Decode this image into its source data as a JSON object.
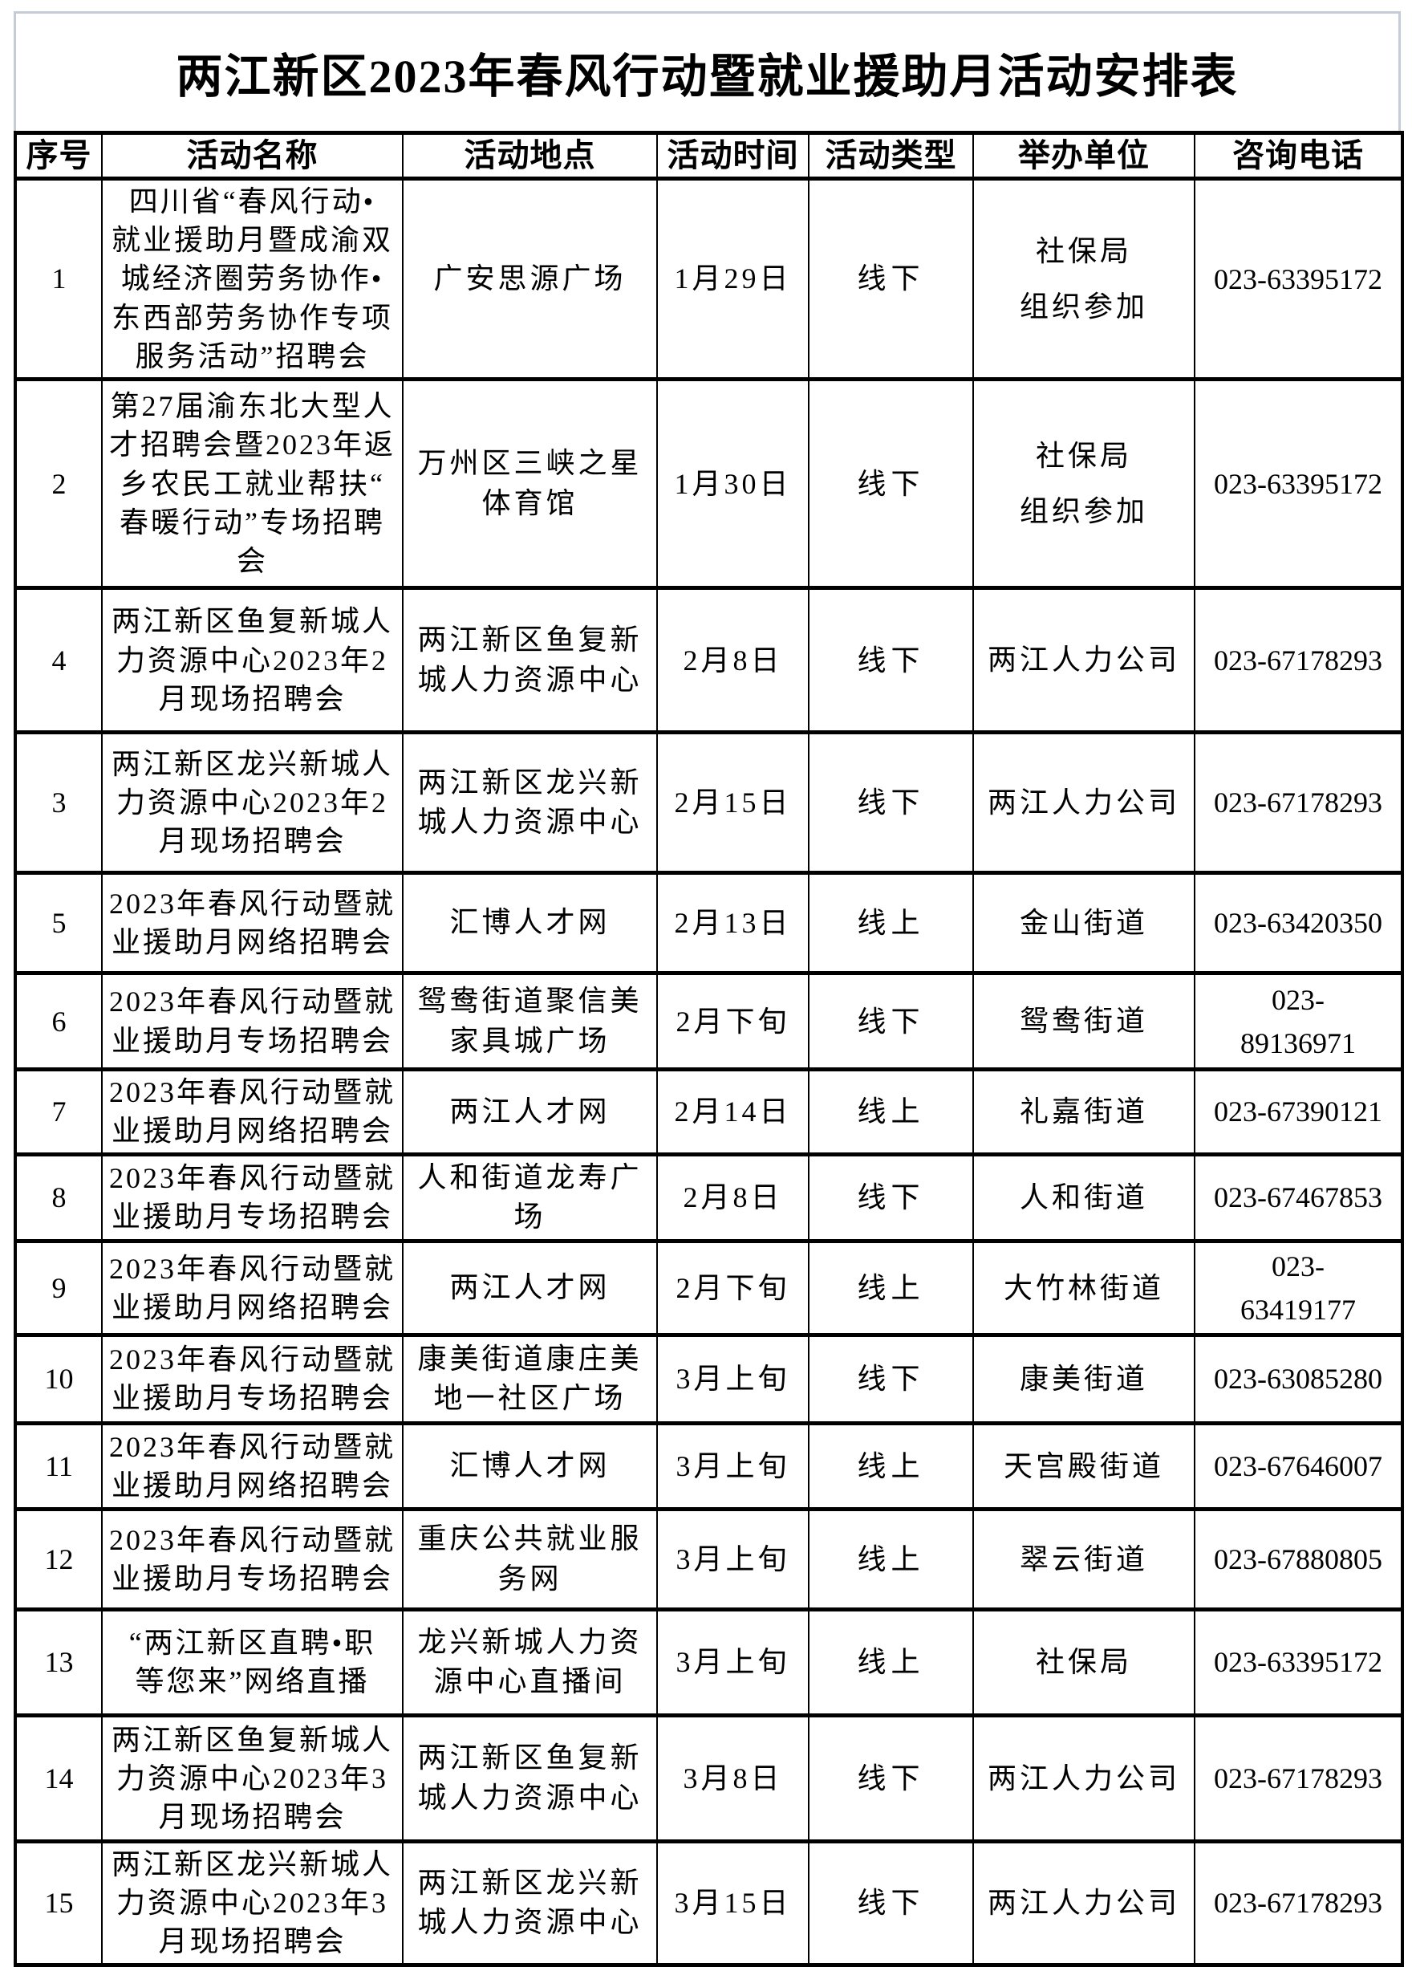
{
  "page": {
    "title": "两江新区2023年春风行动暨就业援助月活动安排表"
  },
  "table": {
    "columns": [
      "序号",
      "活动名称",
      "活动地点",
      "活动时间",
      "活动类型",
      "举办单位",
      "咨询电话"
    ],
    "rows": [
      {
        "no": "1",
        "name": "四川省“春风行动•\n就业援助月暨成渝双\n城经济圈劳务协作•\n东西部劳务协作专项\n服务活动”招聘会",
        "place": "广安思源广场",
        "time": "1月29日",
        "type": "线下",
        "org": "社保局\n组织参加",
        "phone": "023-63395172"
      },
      {
        "no": "2",
        "name": "第27届渝东北大型人\n才招聘会暨2023年返\n乡农民工就业帮扶“\n春暖行动”专场招聘\n会",
        "place": "万州区三峡之星\n体育馆",
        "time": "1月30日",
        "type": "线下",
        "org": "社保局\n组织参加",
        "phone": "023-63395172"
      },
      {
        "no": "4",
        "name": "两江新区鱼复新城人\n力资源中心2023年2\n月现场招聘会",
        "place": "两江新区鱼复新\n城人力资源中心",
        "time": "2月8日",
        "type": "线下",
        "org": "两江人力公司",
        "phone": "023-67178293"
      },
      {
        "no": "3",
        "name": "两江新区龙兴新城人\n力资源中心2023年2\n月现场招聘会",
        "place": "两江新区龙兴新\n城人力资源中心",
        "time": "2月15日",
        "type": "线下",
        "org": "两江人力公司",
        "phone": "023-67178293"
      },
      {
        "no": "5",
        "name": "2023年春风行动暨就\n业援助月网络招聘会",
        "place": "汇博人才网",
        "time": "2月13日",
        "type": "线上",
        "org": "金山街道",
        "phone": "023-63420350"
      },
      {
        "no": "6",
        "name": "2023年春风行动暨就\n业援助月专场招聘会",
        "place": "鸳鸯街道聚信美\n家具城广场",
        "time": "2月下旬",
        "type": "线下",
        "org": "鸳鸯街道",
        "phone": "023-\n89136971"
      },
      {
        "no": "7",
        "name": "2023年春风行动暨就\n业援助月网络招聘会",
        "place": "两江人才网",
        "time": "2月14日",
        "type": "线上",
        "org": "礼嘉街道",
        "phone": "023-67390121"
      },
      {
        "no": "8",
        "name": "2023年春风行动暨就\n业援助月专场招聘会",
        "place": "人和街道龙寿广\n场",
        "time": "2月8日",
        "type": "线下",
        "org": "人和街道",
        "phone": "023-67467853"
      },
      {
        "no": "9",
        "name": "2023年春风行动暨就\n业援助月网络招聘会",
        "place": "两江人才网",
        "time": "2月下旬",
        "type": "线上",
        "org": "大竹林街道",
        "phone": "023-\n63419177"
      },
      {
        "no": "10",
        "name": "2023年春风行动暨就\n业援助月专场招聘会",
        "place": "康美街道康庄美\n地一社区广场",
        "time": "3月上旬",
        "type": "线下",
        "org": "康美街道",
        "phone": "023-63085280"
      },
      {
        "no": "11",
        "name": "2023年春风行动暨就\n业援助月网络招聘会",
        "place": "汇博人才网",
        "time": "3月上旬",
        "type": "线上",
        "org": "天宫殿街道",
        "phone": "023-67646007"
      },
      {
        "no": "12",
        "name": "2023年春风行动暨就\n业援助月专场招聘会",
        "place": "重庆公共就业服\n务网",
        "time": "3月上旬",
        "type": "线上",
        "org": "翠云街道",
        "phone": "023-67880805"
      },
      {
        "no": "13",
        "name": "“两江新区直聘•职\n等您来”网络直播",
        "place": "龙兴新城人力资\n源中心直播间",
        "time": "3月上旬",
        "type": "线上",
        "org": "社保局",
        "phone": "023-63395172"
      },
      {
        "no": "14",
        "name": "两江新区鱼复新城人\n力资源中心2023年3\n月现场招聘会",
        "place": "两江新区鱼复新\n城人力资源中心",
        "time": "3月8日",
        "type": "线下",
        "org": "两江人力公司",
        "phone": "023-67178293"
      },
      {
        "no": "15",
        "name": "两江新区龙兴新城人\n力资源中心2023年3\n月现场招聘会",
        "place": "两江新区龙兴新\n城人力资源中心",
        "time": "3月15日",
        "type": "线下",
        "org": "两江人力公司",
        "phone": "023-67178293"
      }
    ]
  }
}
